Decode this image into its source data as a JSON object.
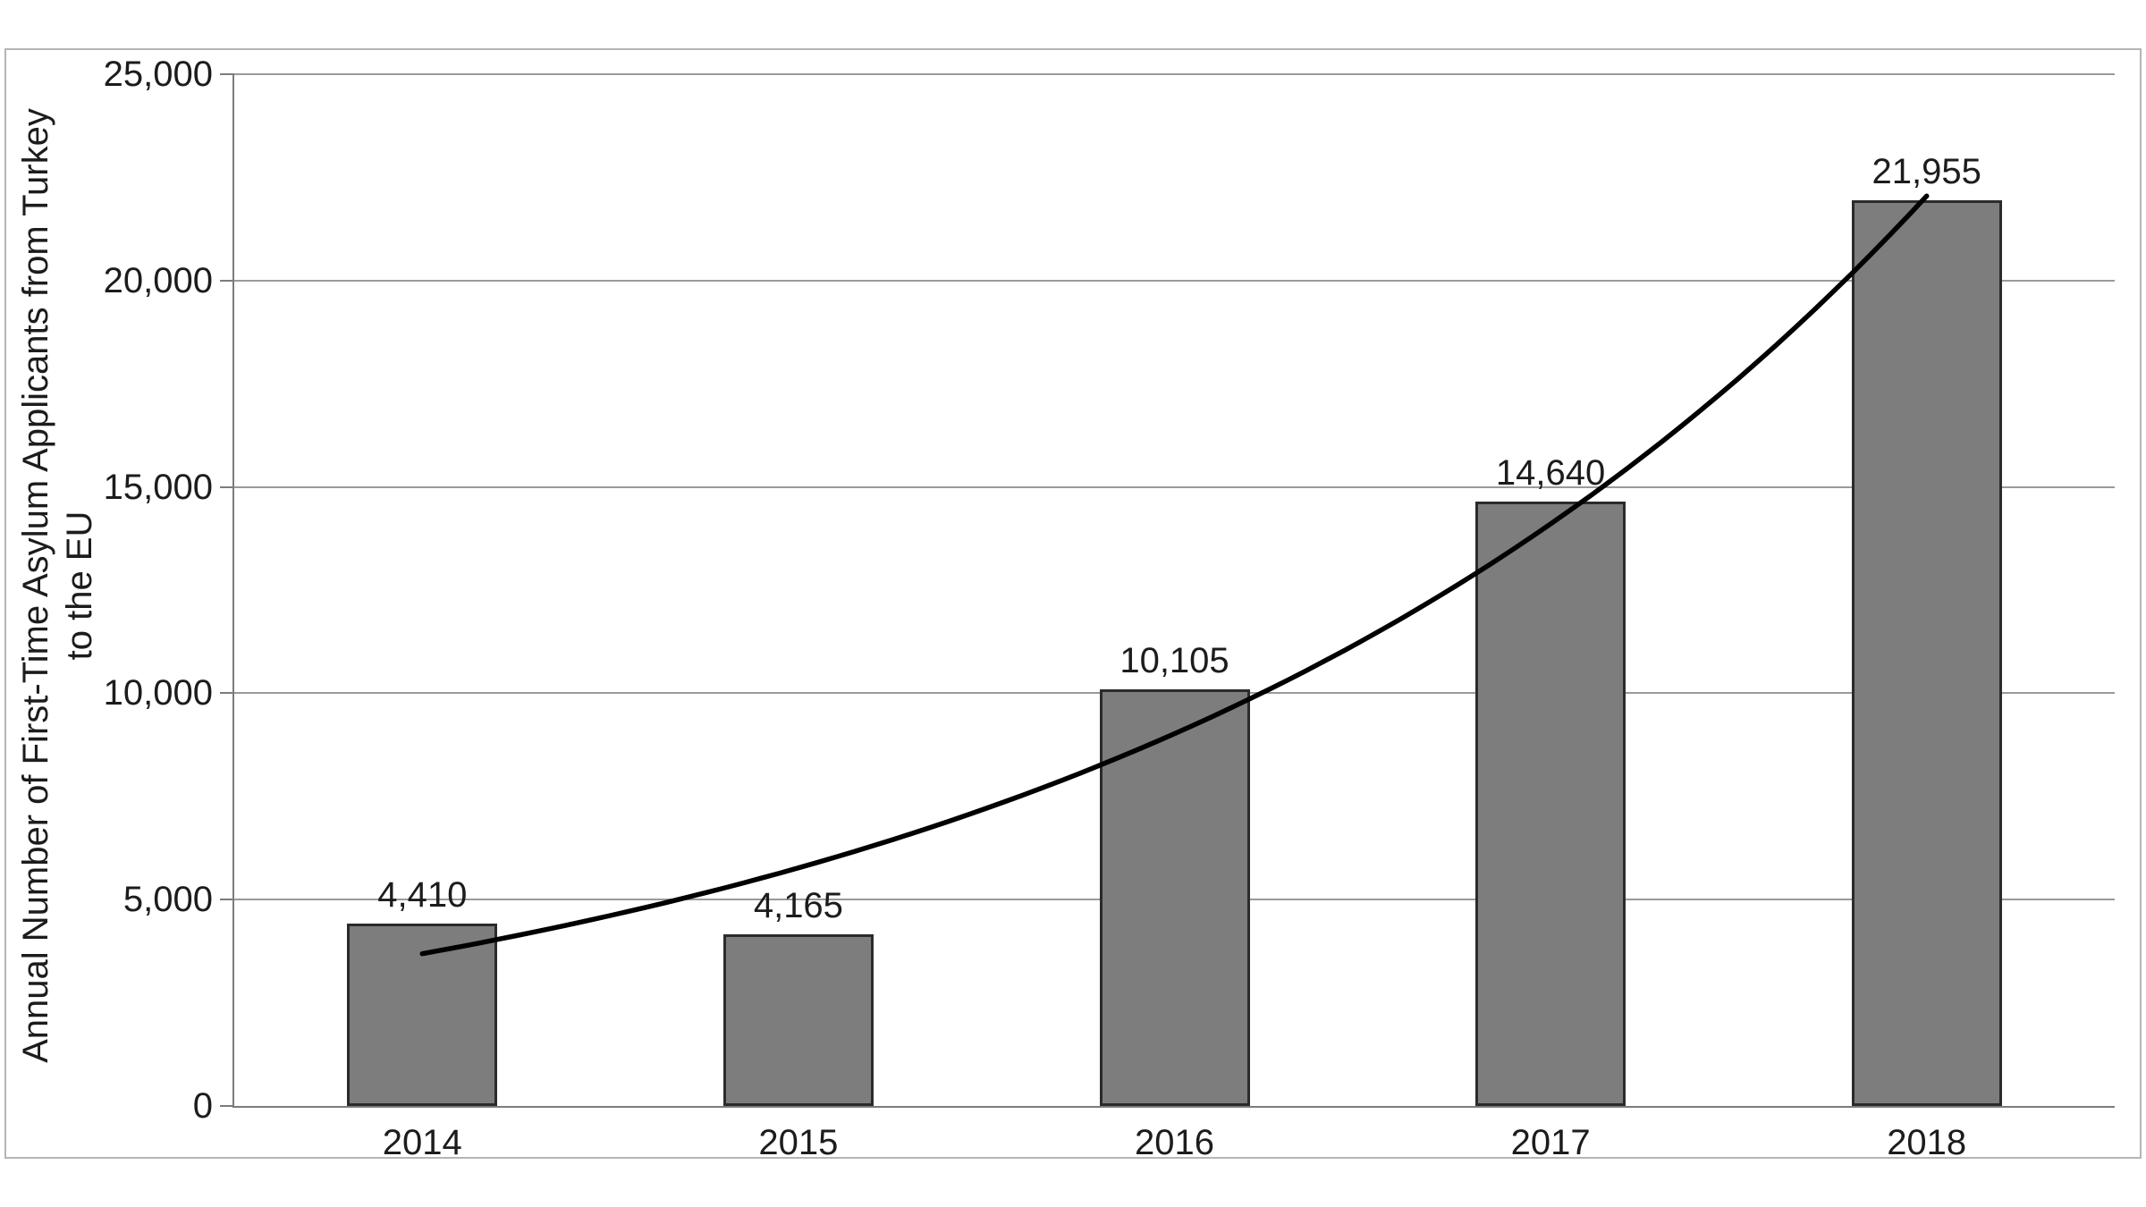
{
  "chart_data": {
    "type": "bar",
    "title": "",
    "categories": [
      "2014",
      "2015",
      "2016",
      "2017",
      "2018"
    ],
    "values": [
      4410,
      4165,
      10105,
      14640,
      21955
    ],
    "value_labels": [
      "4,410",
      "4,165",
      "10,105",
      "14,640",
      "21,955"
    ],
    "xlabel": "",
    "ylabel": "Annual Number of First-Time Asylum Applicants from Turkey to the EU",
    "ylabel_lines": [
      "Annual Number of First-Time Asylum Applicants from Turkey",
      "to the EU"
    ],
    "ylim": [
      0,
      25000
    ],
    "yticks": [
      0,
      5000,
      10000,
      15000,
      20000,
      25000
    ],
    "ytick_labels": [
      "0",
      "5,000",
      "10,000",
      "15,000",
      "20,000",
      "25,000"
    ],
    "grid": "horizontal",
    "legend_position": "none",
    "bar_width_ratio": 0.4,
    "trendline": {
      "type": "exponential",
      "coef_a": 3690,
      "coef_b": 0.4469,
      "x_start_index": 0,
      "x_end_index": 4
    },
    "colors": {
      "bar_fill": "#7d7d7d",
      "bar_border": "#2b2b2b",
      "gridline": "#9a9a9a",
      "axis": "#7c7c7c",
      "text": "#1c1c1c",
      "trendline": "#000000",
      "frame_border": "#b5b5b5",
      "background": "#ffffff"
    }
  }
}
